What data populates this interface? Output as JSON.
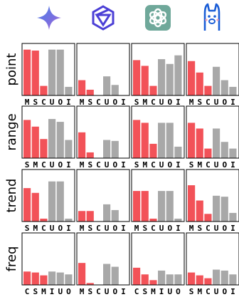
{
  "header_icons": [
    {
      "icon": "gemini-sparkle-icon",
      "color": "#4a7fe8"
    },
    {
      "icon": "stack-hexagon-logo-icon",
      "color": "#4b3fd6"
    },
    {
      "icon": "openai-knot-icon",
      "color": "#6fa89a"
    },
    {
      "icon": "llama-alpaca-icon",
      "color": "#1a5dd6"
    }
  ],
  "colors": {
    "highlight": "#f25258",
    "other": "#a8a8a8"
  },
  "chart_data": {
    "type": "bar",
    "ylim": [
      0,
      1
    ],
    "rows": [
      {
        "label": "point",
        "panels": [
          {
            "categories": [
              "M",
              "S",
              "C",
              "U",
              "O",
              "I"
            ],
            "values": [
              0.96,
              0.94,
              0.2,
              0.96,
              0.96,
              0.18
            ],
            "highlight": [
              0,
              1,
              2
            ]
          },
          {
            "categories": [
              "M",
              "S",
              "C",
              "U",
              "O",
              "I"
            ],
            "values": [
              0.32,
              0.12,
              0.0,
              0.4,
              0.22,
              0.0
            ],
            "highlight": [
              0,
              1
            ]
          },
          {
            "categories": [
              "S",
              "M",
              "C",
              "U",
              "O",
              "I"
            ],
            "values": [
              0.74,
              0.62,
              0.2,
              0.76,
              0.66,
              0.84
            ],
            "highlight": [
              0,
              1,
              2
            ]
          },
          {
            "categories": [
              "M",
              "S",
              "C",
              "U",
              "O",
              "I"
            ],
            "values": [
              0.72,
              0.48,
              0.2,
              0.6,
              0.32,
              0.18
            ],
            "highlight": [
              0,
              1,
              2
            ]
          }
        ]
      },
      {
        "label": "range",
        "panels": [
          {
            "categories": [
              "S",
              "M",
              "C",
              "U",
              "O",
              "I"
            ],
            "values": [
              0.8,
              0.66,
              0.4,
              0.82,
              0.76,
              0.38
            ],
            "highlight": [
              0,
              1,
              2
            ]
          },
          {
            "categories": [
              "M",
              "S",
              "C",
              "U",
              "O",
              "I"
            ],
            "values": [
              0.54,
              0.12,
              0.0,
              0.38,
              0.36,
              0.0
            ],
            "highlight": [
              0,
              1
            ]
          },
          {
            "categories": [
              "S",
              "M",
              "C",
              "U",
              "O",
              "I"
            ],
            "values": [
              0.8,
              0.74,
              0.3,
              0.74,
              0.74,
              0.24
            ],
            "highlight": [
              0,
              1,
              2
            ]
          },
          {
            "categories": [
              "S",
              "M",
              "C",
              "U",
              "O",
              "I"
            ],
            "values": [
              0.74,
              0.62,
              0.2,
              0.62,
              0.34,
              0.2
            ],
            "highlight": [
              0,
              1,
              2
            ]
          }
        ]
      },
      {
        "label": "trend",
        "panels": [
          {
            "categories": [
              "S",
              "M",
              "C",
              "U",
              "O",
              "I"
            ],
            "values": [
              0.7,
              0.6,
              0.06,
              0.84,
              0.84,
              0.06
            ],
            "highlight": [
              0,
              1,
              2
            ]
          },
          {
            "categories": [
              "M",
              "S",
              "C",
              "U",
              "O",
              "I"
            ],
            "values": [
              0.22,
              0.22,
              0.0,
              0.36,
              0.24,
              0.0
            ],
            "highlight": [
              0,
              1
            ]
          },
          {
            "categories": [
              "M",
              "S",
              "C",
              "U",
              "O",
              "I"
            ],
            "values": [
              0.64,
              0.64,
              0.06,
              0.64,
              0.64,
              0.06
            ],
            "highlight": [
              0,
              1,
              2
            ]
          },
          {
            "categories": [
              "M",
              "S",
              "C",
              "U",
              "O",
              "I"
            ],
            "values": [
              0.76,
              0.44,
              0.16,
              0.54,
              0.52,
              0.18
            ],
            "highlight": [
              0,
              1,
              2
            ]
          }
        ]
      },
      {
        "label": "freq",
        "panels": [
          {
            "categories": [
              "C",
              "S",
              "M",
              "I",
              "U",
              "O"
            ],
            "values": [
              0.28,
              0.26,
              0.2,
              0.28,
              0.26,
              0.22
            ],
            "highlight": [
              0,
              1,
              2
            ]
          },
          {
            "categories": [
              "M",
              "S",
              "C",
              "U",
              "O",
              "I"
            ],
            "values": [
              0.46,
              0.04,
              0.0,
              0.44,
              0.38,
              0.0
            ],
            "highlight": [
              0,
              1
            ]
          },
          {
            "categories": [
              "C",
              "S",
              "M",
              "I",
              "U",
              "O"
            ],
            "values": [
              0.36,
              0.22,
              0.1,
              0.3,
              0.22,
              0.22
            ],
            "highlight": [
              0,
              1,
              2
            ]
          },
          {
            "categories": [
              "S",
              "M",
              "C",
              "U",
              "O",
              "I"
            ],
            "values": [
              0.26,
              0.2,
              0.14,
              0.32,
              0.3,
              0.22
            ],
            "highlight": [
              0,
              1,
              2
            ]
          }
        ]
      }
    ]
  }
}
